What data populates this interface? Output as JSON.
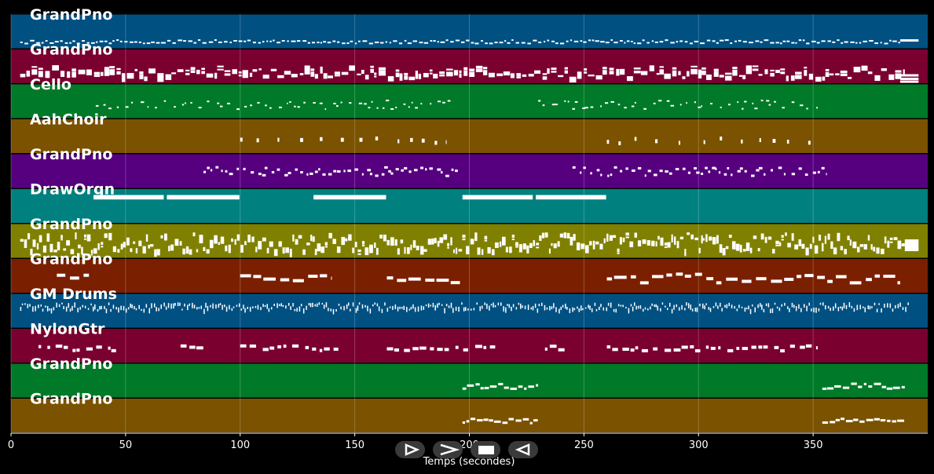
{
  "chart_data": {
    "type": "piano-roll",
    "xlabel": "Temps (secondes)",
    "xlim": [
      0,
      400
    ],
    "xticks": [
      0,
      50,
      100,
      150,
      200,
      250,
      300,
      350
    ],
    "grid": true,
    "tracks": [
      {
        "name": "GrandPno",
        "color": "#005082",
        "pattern": "dense-line",
        "segments": [
          [
            4,
            388
          ]
        ],
        "pitch_low": 0.18,
        "pitch_high": 0.28,
        "tail": [
          388,
          396
        ]
      },
      {
        "name": "GrandPno",
        "color": "#7a0030",
        "pattern": "chords",
        "segments": [
          [
            4,
            390
          ]
        ],
        "pitch_low": 0.2,
        "pitch_high": 0.45,
        "tail": [
          388,
          396
        ]
      },
      {
        "name": "Cello",
        "color": "#007a28",
        "pattern": "sparse",
        "segments": [
          [
            37,
            193
          ],
          [
            230,
            352
          ]
        ],
        "pitch_low": 0.3,
        "pitch_high": 0.55
      },
      {
        "name": "AahChoir",
        "color": "#7a5200",
        "pattern": "blips",
        "segments": [
          [
            100,
            190
          ],
          [
            260,
            352
          ]
        ],
        "pitch_low": 0.35,
        "pitch_high": 0.5
      },
      {
        "name": "GrandPno",
        "color": "#560080",
        "pattern": "mixed",
        "segments": [
          [
            84,
            196
          ],
          [
            245,
            356
          ]
        ],
        "pitch_low": 0.4,
        "pitch_high": 0.65
      },
      {
        "name": "DrawOrgn",
        "color": "#00807f",
        "pattern": "sustained",
        "segments": [
          [
            36,
            67
          ],
          [
            68,
            100
          ],
          [
            132,
            164
          ],
          [
            197,
            228
          ],
          [
            229,
            260
          ]
        ],
        "pitch_low": 0.05,
        "pitch_high": 0.3
      },
      {
        "name": "GrandPno",
        "color": "#808000",
        "pattern": "dense-block",
        "segments": [
          [
            4,
            390
          ]
        ],
        "pitch_low": 0.25,
        "pitch_high": 0.75,
        "tail": [
          390,
          396
        ]
      },
      {
        "name": "GrandPno",
        "color": "#7a2000",
        "pattern": "runs",
        "segments": [
          [
            20,
            34
          ],
          [
            100,
            140
          ],
          [
            164,
            196
          ],
          [
            260,
            388
          ]
        ],
        "pitch_low": 0.35,
        "pitch_high": 0.6
      },
      {
        "name": "GM Drums",
        "color": "#005082",
        "pattern": "drums",
        "segments": [
          [
            4,
            392
          ]
        ],
        "pitch_low": 0.55,
        "pitch_high": 0.75
      },
      {
        "name": "NylonGtr",
        "color": "#7a0030",
        "pattern": "clusters",
        "segments": [
          [
            12,
            48
          ],
          [
            74,
            86
          ],
          [
            100,
            145
          ],
          [
            164,
            212
          ],
          [
            233,
            242
          ],
          [
            260,
            352
          ]
        ],
        "pitch_low": 0.4,
        "pitch_high": 0.55
      },
      {
        "name": "GrandPno",
        "color": "#007a28",
        "pattern": "melody",
        "segments": [
          [
            197,
            230
          ],
          [
            354,
            390
          ]
        ],
        "pitch_low": 0.3,
        "pitch_high": 0.45
      },
      {
        "name": "GrandPno",
        "color": "#7a5200",
        "pattern": "melody",
        "segments": [
          [
            197,
            230
          ],
          [
            354,
            390
          ]
        ],
        "pitch_low": 0.3,
        "pitch_high": 0.45
      }
    ]
  },
  "controls": {
    "items": [
      {
        "name": "play-icon"
      },
      {
        "name": "fast-forward-icon"
      },
      {
        "name": "stop-icon"
      },
      {
        "name": "rewind-icon"
      }
    ]
  }
}
